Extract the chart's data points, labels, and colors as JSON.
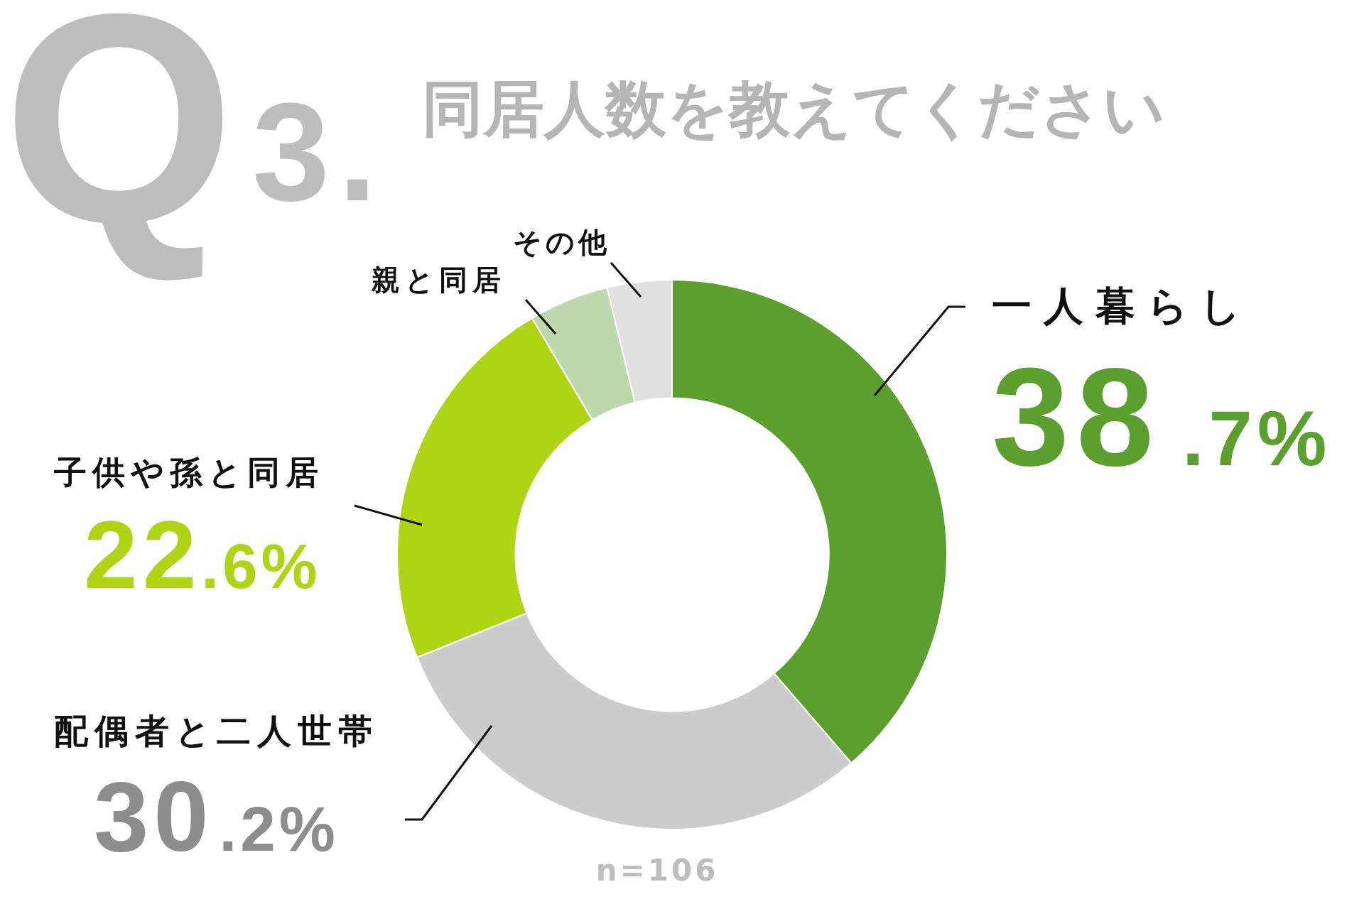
{
  "chart_data": {
    "type": "donut",
    "title": "Q3. 同居人数を教えてください",
    "categories": [
      "一人暮らし",
      "配偶者と二人世帯",
      "子供や孫と同居",
      "親と同居",
      "その他"
    ],
    "values": [
      38.7,
      30.2,
      22.6,
      4.7,
      3.8
    ],
    "colors": [
      "#5ba02e",
      "#cccccc",
      "#aed414",
      "#bed8ae",
      "#e0e0e0"
    ],
    "value_labels": [
      "38.7%",
      "30.2%",
      "22.6%",
      null,
      null
    ],
    "annotations": [
      "n=106"
    ]
  }
}
